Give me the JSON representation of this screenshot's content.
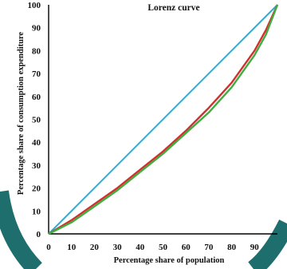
{
  "chart_data": {
    "type": "line",
    "title": "Lorenz curve",
    "xlabel": "Percentage share of population",
    "ylabel": "Percentage share of consumption expenditure",
    "xlim": [
      0,
      100
    ],
    "ylim": [
      0,
      100
    ],
    "x_ticks": [
      "0",
      "10",
      "20",
      "30",
      "40",
      "50",
      "60",
      "70",
      "80",
      "90"
    ],
    "y_ticks": [
      "0",
      "10",
      "20",
      "30",
      "40",
      "50",
      "60",
      "70",
      "80",
      "90",
      "100"
    ],
    "grid": false,
    "legend": "none",
    "series": [
      {
        "color": "#3ea8c8",
        "x": [
          0,
          100
        ],
        "y": [
          0,
          100
        ]
      },
      {
        "color": "#d32f2f",
        "x": [
          0,
          10,
          20,
          30,
          40,
          50,
          60,
          70,
          80,
          90,
          95,
          100
        ],
        "y": [
          0,
          6,
          13,
          20,
          28,
          36,
          45,
          55,
          66,
          80,
          89,
          100
        ]
      },
      {
        "color": "#3fae3f",
        "x": [
          0,
          10,
          20,
          30,
          40,
          50,
          60,
          70,
          80,
          90,
          95,
          100
        ],
        "y": [
          0,
          5,
          12,
          19,
          27,
          35,
          44,
          53,
          64,
          78,
          87,
          100
        ]
      }
    ]
  },
  "colors": {
    "frame": "#1f6e6e",
    "axis": "#000000"
  }
}
